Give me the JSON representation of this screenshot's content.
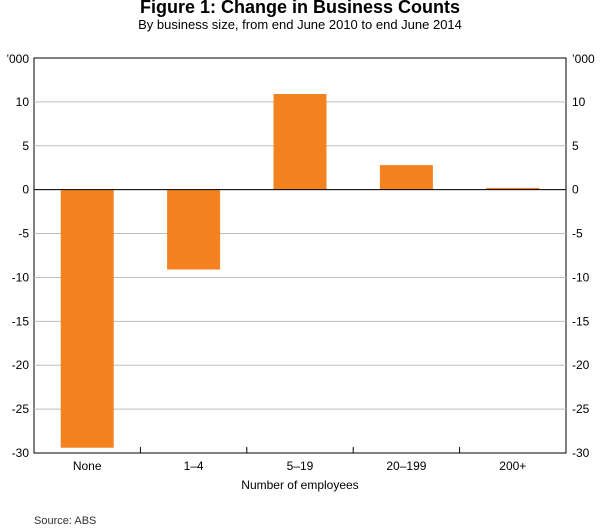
{
  "chart_data": {
    "type": "bar",
    "title": "Figure 1: Change in Business Counts",
    "subtitle": "By business size, from end June 2010 to end June 2014",
    "categories": [
      "None",
      "1–4",
      "5–19",
      "20–199",
      "200+"
    ],
    "values": [
      -29.4,
      -9.1,
      10.9,
      2.8,
      0.2
    ],
    "xlabel": "Number of employees",
    "ylabel_left": "’000",
    "ylabel_right": "’000",
    "ylim": [
      -30,
      15
    ],
    "yticks": [
      -30,
      -25,
      -20,
      -15,
      -10,
      -5,
      0,
      5,
      10
    ],
    "grid": true,
    "bar_color": "#F58220",
    "source": "Source: ABS"
  }
}
